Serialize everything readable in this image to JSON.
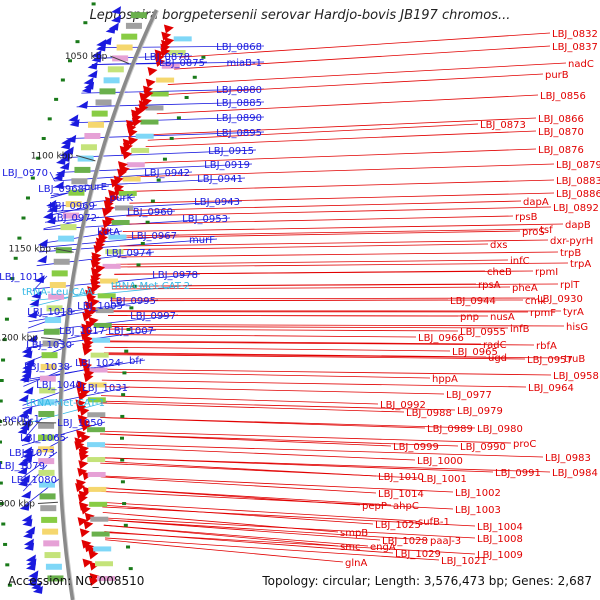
{
  "title": "Leptospira borgpetersenii serovar Hardjo-bovis JB197 chromos...",
  "footer": {
    "accession": "Accession: NC_008510",
    "summary": "Topology: circular; Length: 3,576,473 bp; Genes: 2,687"
  },
  "colors": {
    "reverse": "#1a1adf",
    "forward": "#e10000",
    "rna": "#35b9e6",
    "backbone": "#8a8a8a",
    "marker": "#1a7a1a"
  },
  "kbp_markers": [
    "1050 kbp",
    "1100 kbp",
    "1150 kbp",
    "1200 kbp",
    "1250 kbp",
    "1300 kbp"
  ],
  "left_labels": [
    {
      "text": "LBJ_0868",
      "type": "cds"
    },
    {
      "text": "LBJ_0878",
      "type": "cds"
    },
    {
      "text": "LBJ_0875",
      "type": "cds"
    },
    {
      "text": "miaB-1",
      "type": "cds"
    },
    {
      "text": "LBJ_0880",
      "type": "cds"
    },
    {
      "text": "LBJ_0885",
      "type": "cds"
    },
    {
      "text": "LBJ_0890",
      "type": "cds"
    },
    {
      "text": "LBJ_0895",
      "type": "cds"
    },
    {
      "text": "LBJ_0915",
      "type": "cds"
    },
    {
      "text": "LBJ_0919",
      "type": "cds"
    },
    {
      "text": "LBJ_0942",
      "type": "cds"
    },
    {
      "text": "LBJ_0941",
      "type": "cds"
    },
    {
      "text": "LBJ_0970",
      "type": "cds"
    },
    {
      "text": "LBJ_0968",
      "type": "cds"
    },
    {
      "text": "purE",
      "type": "cds"
    },
    {
      "text": "purK",
      "type": "cds"
    },
    {
      "text": "LBJ_0969",
      "type": "cds"
    },
    {
      "text": "LBJ_0943",
      "type": "cds"
    },
    {
      "text": "LBJ_0972",
      "type": "cds"
    },
    {
      "text": "LBJ_0960",
      "type": "cds"
    },
    {
      "text": "LBJ_0953",
      "type": "cds"
    },
    {
      "text": "kdtA",
      "type": "cds"
    },
    {
      "text": "LBJ_0967",
      "type": "cds"
    },
    {
      "text": "murF",
      "type": "cds"
    },
    {
      "text": "LBJ_0974",
      "type": "cds"
    },
    {
      "text": "LBJ_1011",
      "type": "cds"
    },
    {
      "text": "LBJ_0978",
      "type": "cds"
    },
    {
      "text": "tRNA-Leu-CAA",
      "type": "rna"
    },
    {
      "text": "tRNA-Met-CAT-2",
      "type": "rna"
    },
    {
      "text": "LBJ_0995",
      "type": "cds"
    },
    {
      "text": "LBJ_1005",
      "type": "cds"
    },
    {
      "text": "LBJ_1018",
      "type": "cds"
    },
    {
      "text": "LBJ_0997",
      "type": "cds"
    },
    {
      "text": "LBJ_1017",
      "type": "cds"
    },
    {
      "text": "LBJ_1007",
      "type": "cds"
    },
    {
      "text": "LBJ_1030",
      "type": "cds"
    },
    {
      "text": "LBJ_1024",
      "type": "cds"
    },
    {
      "text": "bfr",
      "type": "cds"
    },
    {
      "text": "LBJ_1038",
      "type": "cds"
    },
    {
      "text": "LBJ_1040",
      "type": "cds"
    },
    {
      "text": "LBJ_1031",
      "type": "cds"
    },
    {
      "text": "tRNA-Met-CAT-1",
      "type": "rna"
    },
    {
      "text": "neuB-1",
      "type": "cds"
    },
    {
      "text": "LBJ_1050",
      "type": "cds"
    },
    {
      "text": "LBJ_1065",
      "type": "cds"
    },
    {
      "text": "LBJ_1073",
      "type": "cds"
    },
    {
      "text": "LBJ_1079",
      "type": "cds"
    },
    {
      "text": "LBJ_1080",
      "type": "cds"
    }
  ],
  "right_labels": [
    "LBJ_0832",
    "LBJ_0837",
    "nadC",
    "purB",
    "LBJ_0856",
    "LBJ_0866",
    "LBJ_0873",
    "LBJ_0870",
    "LBJ_0876",
    "LBJ_0879",
    "LBJ_0883",
    "LBJ_0886",
    "dapA",
    "LBJ_0892",
    "rpsB",
    "tsf",
    "dapB",
    "proS",
    "dxr-pyrH",
    "dxs",
    "trpB",
    "infC",
    "trpA",
    "cheB",
    "rpmI",
    "rpsA",
    "pheA",
    "rplT",
    "LBJ_0944",
    "cmk",
    "LBJ_0930",
    "pnp",
    "nusA",
    "rpmF",
    "tyrA",
    "LBJ_0955",
    "infB",
    "hisG",
    "LBJ_0966",
    "radC",
    "rbfA",
    "LBJ_0965",
    "ugd",
    "LBJ_0957",
    "truB",
    "LBJ_0958",
    "LBJ_0964",
    "hppA",
    "LBJ_0977",
    "LBJ_0992",
    "LBJ_0988",
    "LBJ_0979",
    "LBJ_0989",
    "LBJ_0980",
    "LBJ_0990",
    "proC",
    "LBJ_0983",
    "LBJ_0999",
    "LBJ_0991",
    "LBJ_0984",
    "LBJ_1000",
    "LBJ_1010",
    "LBJ_1001",
    "LBJ_1014",
    "LBJ_1002",
    "pepP",
    "ahpC",
    "LBJ_1003",
    "sufB-1",
    "LBJ_1025",
    "LBJ_1004",
    "smpB",
    "paaJ-3",
    "LBJ_1028",
    "LBJ_1008",
    "smc",
    "engA",
    "LBJ_1029",
    "LBJ_1009",
    "LBJ_1021",
    "glnA"
  ]
}
